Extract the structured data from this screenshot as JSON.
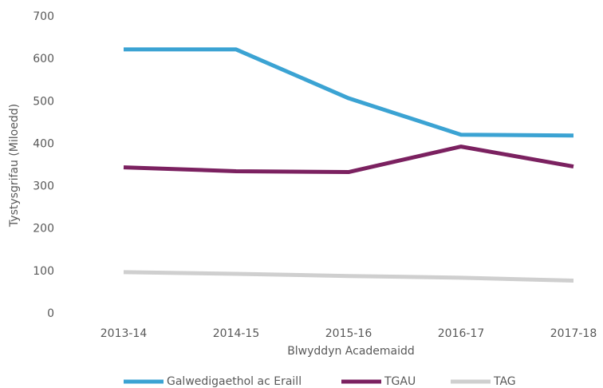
{
  "chart_data": {
    "type": "line",
    "x_label": "Blwyddyn Academaidd",
    "y_label": "Tystysgrifau (Miloedd)",
    "categories": [
      "2013-14",
      "2014-15",
      "2015-16",
      "2016-17",
      "2017-18"
    ],
    "series": [
      {
        "name": "Galwedigaethol ac Eraill",
        "color": "#3ba3d3",
        "values": [
          623,
          623,
          508,
          422,
          420
        ]
      },
      {
        "name": "TGAU",
        "color": "#7b2160",
        "values": [
          345,
          336,
          334,
          394,
          347
        ]
      },
      {
        "name": "TAG",
        "color": "#cfcfcf",
        "values": [
          98,
          94,
          89,
          85,
          78
        ]
      }
    ],
    "ylim": [
      0,
      700
    ],
    "yticks": [
      0,
      100,
      200,
      300,
      400,
      500,
      600,
      700
    ],
    "grid": false,
    "legend": "bottom"
  }
}
